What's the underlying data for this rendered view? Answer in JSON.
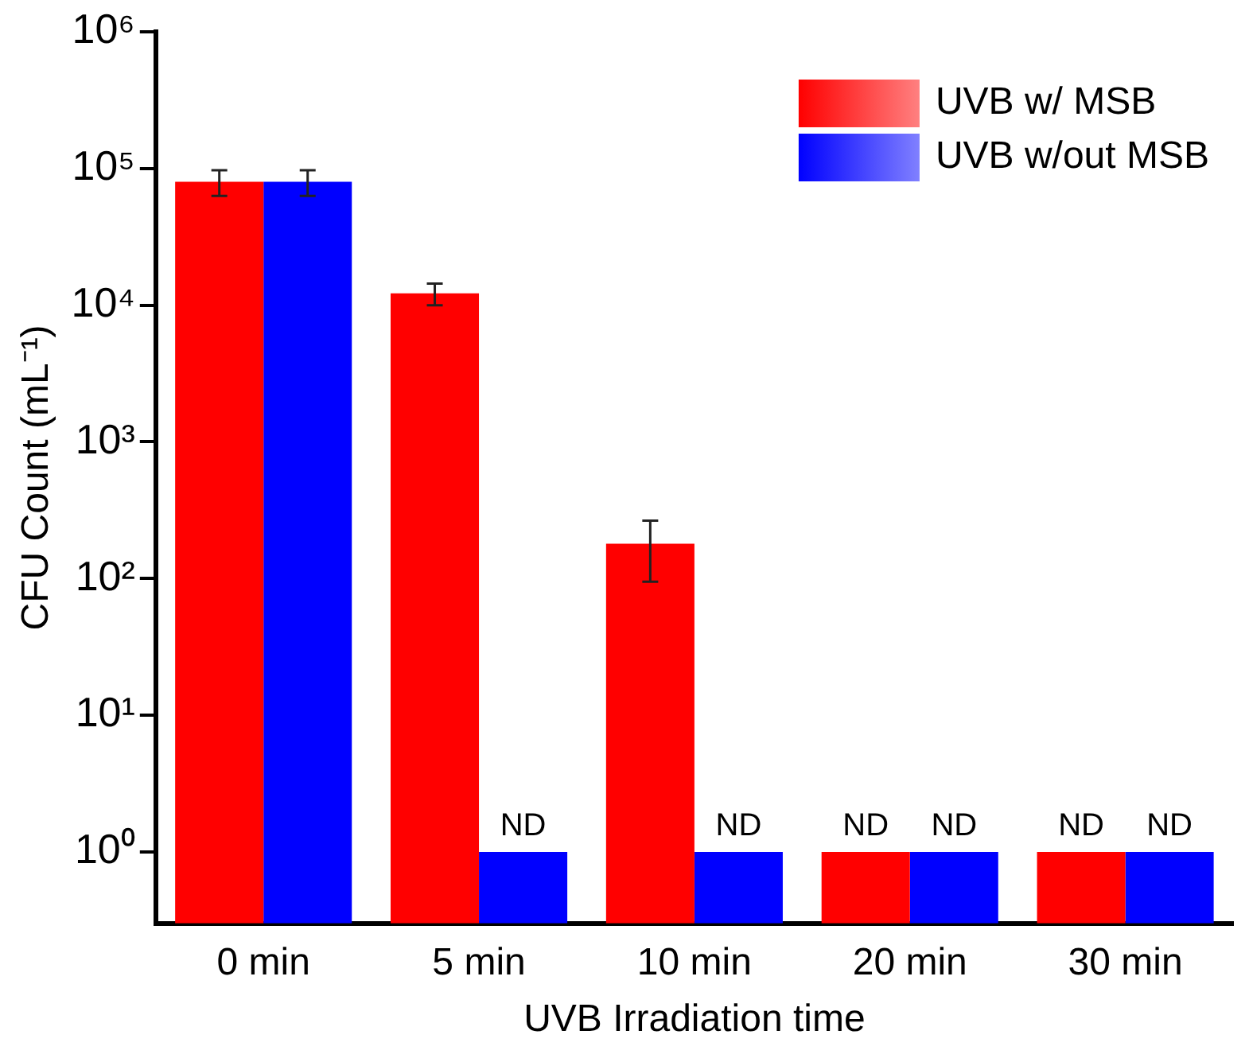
{
  "chart_data": {
    "type": "bar",
    "xlabel": "UVB Irradiation time",
    "ylabel": "CFU Count (mL⁻¹)",
    "categories": [
      "0 min",
      "5 min",
      "10 min",
      "20 min",
      "30 min"
    ],
    "series": [
      {
        "name": "UVB w/ MSB",
        "color": "#ff0000",
        "values": [
          80000,
          12200,
          180,
          1,
          1
        ],
        "errors": [
          17000,
          2200,
          85,
          null,
          null
        ],
        "value_labels": [
          null,
          null,
          null,
          "ND",
          "ND"
        ]
      },
      {
        "name": "UVB w/out MSB",
        "color": "#0000ff",
        "values": [
          80000,
          1,
          1,
          1,
          1
        ],
        "errors": [
          17000,
          null,
          null,
          null,
          null
        ],
        "value_labels": [
          null,
          "ND",
          "ND",
          "ND",
          "ND"
        ]
      }
    ],
    "log": "y",
    "ylim": [
      0.3,
      1000000
    ],
    "yticks": [
      {
        "value": 1,
        "label": "10⁰"
      },
      {
        "value": 10,
        "label": "10¹"
      },
      {
        "value": 100,
        "label": "10²"
      },
      {
        "value": 1000,
        "label": "10³"
      },
      {
        "value": 10000,
        "label": "10⁴"
      },
      {
        "value": 100000,
        "label": "10⁵"
      },
      {
        "value": 1000000,
        "label": "10⁶"
      }
    ],
    "grid": false,
    "legend": "top right"
  }
}
